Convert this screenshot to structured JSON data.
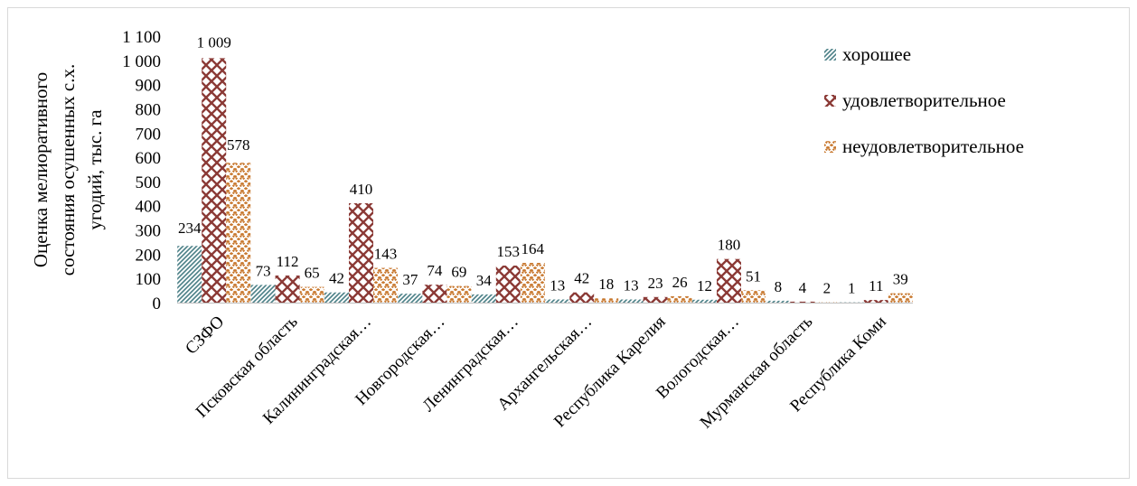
{
  "chart_data": {
    "type": "bar",
    "ylabel": "Оценка мелиоративного состояния осушенных с.х. угодий, тыс. га",
    "ylabel_lines": [
      "Оценка мелиоративного",
      "состояния осушенных с.х.",
      "угодий, тыс. га"
    ],
    "ylim": [
      0,
      1100
    ],
    "yticks": [
      0,
      100,
      200,
      300,
      400,
      500,
      600,
      700,
      800,
      900,
      1000,
      1100
    ],
    "ytick_labels": [
      "0",
      "100",
      "200",
      "300",
      "400",
      "500",
      "600",
      "700",
      "800",
      "900",
      "1 000",
      "1 100"
    ],
    "grid": false,
    "legend_position": "top-right",
    "categories": [
      "СЗФО",
      "Псковская область",
      "Калининградская…",
      "Новгородская…",
      "Ленинградская…",
      "Архангельская…",
      "Республика Карелия",
      "Вологодская…",
      "Мурманская область",
      "Республика Коми"
    ],
    "series": [
      {
        "name": "хорошее",
        "color": "#4a7f86",
        "values": [
          234,
          73,
          42,
          37,
          34,
          13,
          13,
          12,
          8,
          1
        ],
        "labels": [
          "234",
          "73",
          "42",
          "37",
          "34",
          "13",
          "13",
          "12",
          "8",
          "1"
        ]
      },
      {
        "name": "удовлетворительное",
        "color": "#8b3a36",
        "values": [
          1009,
          112,
          410,
          74,
          153,
          42,
          23,
          180,
          4,
          11
        ],
        "labels": [
          "1 009",
          "112",
          "410",
          "74",
          "153",
          "42",
          "23",
          "180",
          "4",
          "11"
        ]
      },
      {
        "name": "неудовлетворительное",
        "color": "#c8782e",
        "values": [
          578,
          65,
          143,
          69,
          164,
          18,
          26,
          51,
          2,
          39
        ],
        "labels": [
          "578",
          "65",
          "143",
          "69",
          "164",
          "18",
          "26",
          "51",
          "2",
          "39"
        ]
      }
    ]
  }
}
